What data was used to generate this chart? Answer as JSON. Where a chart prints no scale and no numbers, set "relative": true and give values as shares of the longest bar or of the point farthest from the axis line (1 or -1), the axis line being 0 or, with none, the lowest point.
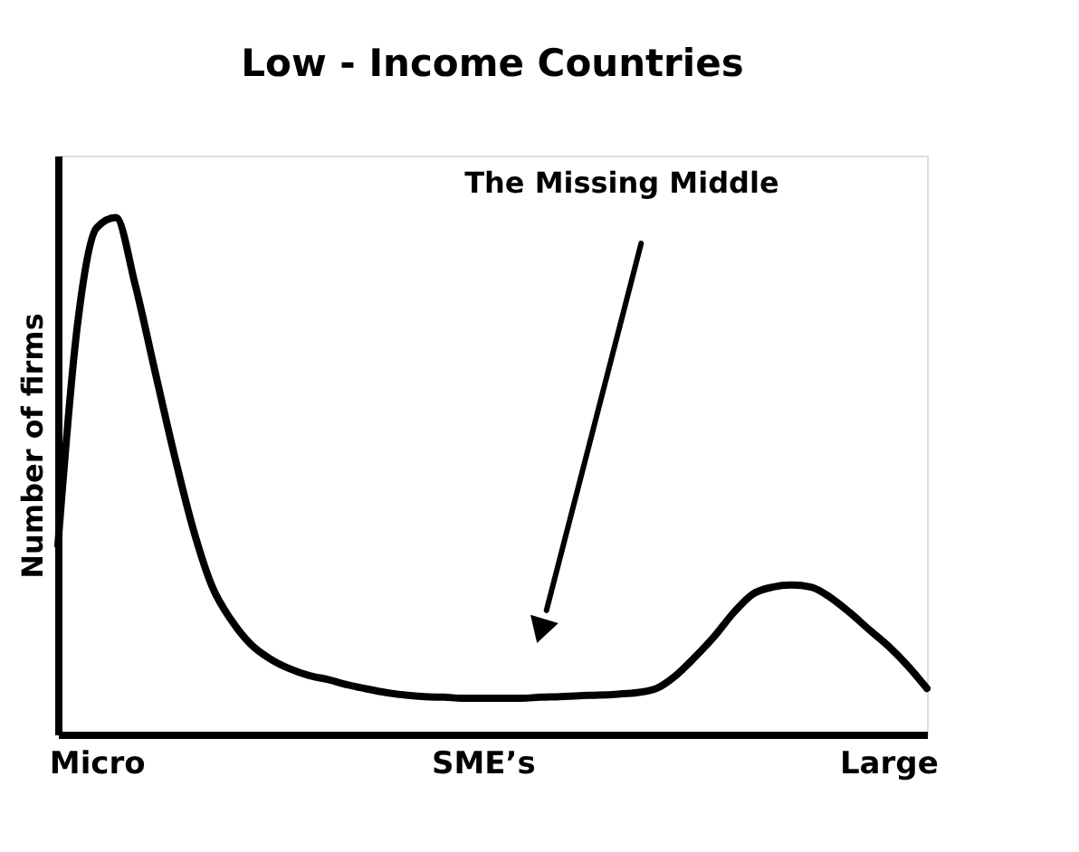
{
  "chart_data": {
    "type": "line",
    "title": "Low - Income Countries",
    "ylabel": "Number of firms",
    "relative": true,
    "color": "#000000",
    "marker": "none",
    "grid": false,
    "legend": false,
    "categories": [
      null,
      null,
      "Micro",
      null,
      null,
      null,
      null,
      null,
      null,
      null,
      null,
      null,
      null,
      null,
      null,
      null,
      null,
      null,
      null,
      null,
      null,
      null,
      "SME’s",
      null,
      null,
      null,
      null,
      null,
      null,
      null,
      null,
      null,
      null,
      null,
      null,
      null,
      null,
      null,
      null,
      null,
      null,
      null,
      null,
      "Large",
      null,
      null
    ],
    "values": [
      0.366,
      0.789,
      0.98,
      1.0,
      0.87,
      0.707,
      0.545,
      0.398,
      0.285,
      0.22,
      0.174,
      0.146,
      0.127,
      0.114,
      0.106,
      0.096,
      0.088,
      0.081,
      0.076,
      0.073,
      0.072,
      0.07,
      0.07,
      0.07,
      0.07,
      0.072,
      0.073,
      0.075,
      0.076,
      0.078,
      0.081,
      0.089,
      0.114,
      0.15,
      0.19,
      0.236,
      0.272,
      0.285,
      0.289,
      0.285,
      0.265,
      0.236,
      0.203,
      0.171,
      0.133,
      0.089
    ],
    "annotations": [
      "The Missing Middle"
    ]
  }
}
